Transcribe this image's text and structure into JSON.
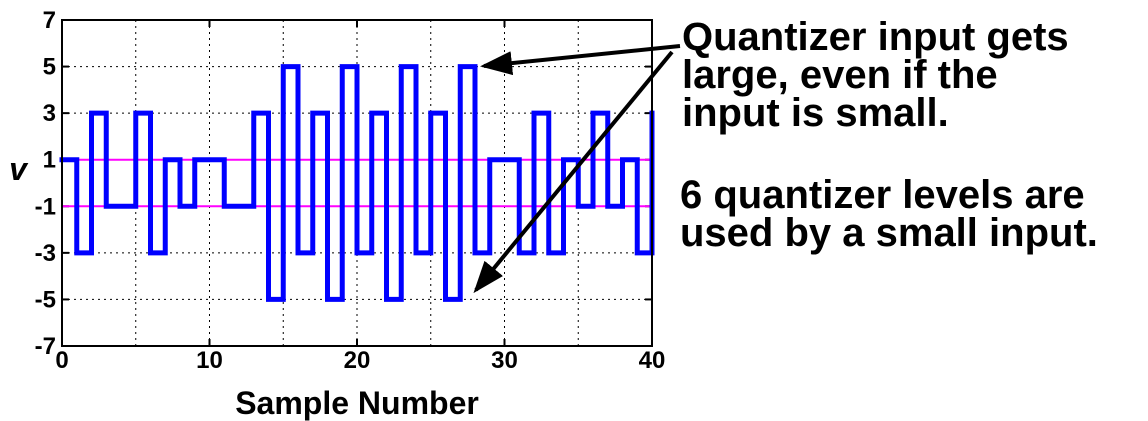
{
  "chart_data": {
    "type": "line",
    "step": true,
    "title": "",
    "xlabel": "Sample Number",
    "ylabel": "v",
    "xlim": [
      0,
      40
    ],
    "ylim": [
      -7,
      7
    ],
    "xticks": [
      0,
      10,
      20,
      30,
      40
    ],
    "yticks": [
      -7,
      -5,
      -3,
      -1,
      1,
      3,
      5,
      7
    ],
    "grid": true,
    "series": [
      {
        "color": "#0000ff",
        "x": [
          0,
          1,
          2,
          3,
          4,
          5,
          6,
          7,
          8,
          9,
          10,
          11,
          12,
          13,
          14,
          15,
          16,
          17,
          18,
          19,
          20,
          21,
          22,
          23,
          24,
          25,
          26,
          27,
          28,
          29,
          30,
          31,
          32,
          33,
          34,
          35,
          36,
          37,
          38,
          39,
          40
        ],
        "y": [
          1,
          -3,
          3,
          -1,
          -1,
          3,
          -3,
          1,
          -1,
          1,
          1,
          -1,
          -1,
          3,
          -5,
          5,
          -3,
          3,
          -5,
          5,
          -3,
          3,
          -5,
          5,
          -3,
          3,
          -5,
          5,
          -3,
          1,
          1,
          -3,
          3,
          -3,
          1,
          -1,
          3,
          -1,
          1,
          -3,
          3
        ]
      }
    ],
    "reference_lines": [
      {
        "y": 1,
        "color": "#ff00ff"
      },
      {
        "y": -1,
        "color": "#ff00ff"
      }
    ]
  },
  "annotations": {
    "large_input": "Quantizer input gets\nlarge, even if the\ninput is small.",
    "levels": "6 quantizer levels are\nused by a small input."
  }
}
